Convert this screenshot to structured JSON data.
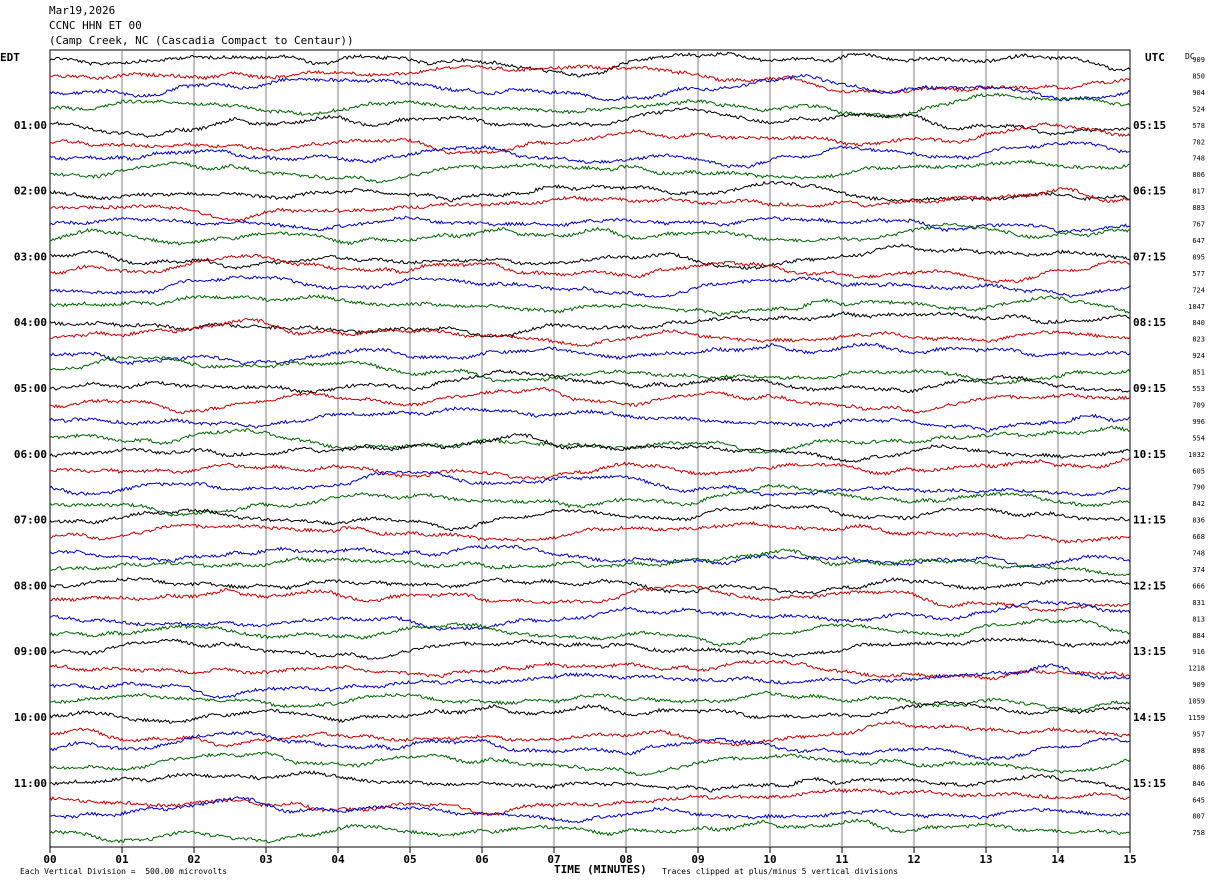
{
  "header": {
    "date": "Mar19,2026",
    "station": "CCNC HHN ET 00",
    "location": "(Camp Creek, NC (Cascadia Compact to Centaur))"
  },
  "left_axis_label": "EDT",
  "right_axis_label": "UTC",
  "dc_label": "DC",
  "footer": {
    "scale_note": "Each Vertical Division =  500.00 microvolts",
    "clip_note": "Traces clipped at plus/minus 5 vertical divisions"
  },
  "colors": {
    "trace_cycle": [
      "#000000",
      "#cc0000",
      "#0000cc",
      "#006600"
    ],
    "grid": "#808080"
  },
  "chart_data": {
    "type": "line",
    "xlabel": "TIME (MINUTES)",
    "xlim": [
      0,
      15
    ],
    "x_ticks": [
      "00",
      "01",
      "02",
      "03",
      "04",
      "05",
      "06",
      "07",
      "08",
      "09",
      "10",
      "11",
      "12",
      "13",
      "14",
      "15"
    ],
    "trace_count": 48,
    "left_time_labels": [
      "01:00",
      "02:00",
      "03:00",
      "04:00",
      "05:00",
      "06:00",
      "07:00",
      "08:00",
      "09:00",
      "10:00",
      "11:00"
    ],
    "right_time_labels": [
      "05:15",
      "06:15",
      "07:15",
      "08:15",
      "09:15",
      "10:15",
      "11:15",
      "12:15",
      "13:15",
      "14:15",
      "15:15"
    ],
    "label_every_n_traces": 4,
    "label_first_trace": 4,
    "dc_offsets": [
      "909",
      "850",
      "904",
      "524",
      "578",
      "702",
      "748",
      "806",
      "817",
      "883",
      "767",
      "647",
      "895",
      "577",
      "724",
      "1047",
      "840",
      "823",
      "924",
      "851",
      "553",
      "709",
      "996",
      "554",
      "1032",
      "605",
      "790",
      "842",
      "836",
      "668",
      "748",
      "374",
      "666",
      "831",
      "813",
      "884",
      "916",
      "1218",
      "909",
      "1059",
      "1159",
      "957",
      "898",
      "886",
      "846",
      "645",
      "807",
      "758"
    ]
  }
}
